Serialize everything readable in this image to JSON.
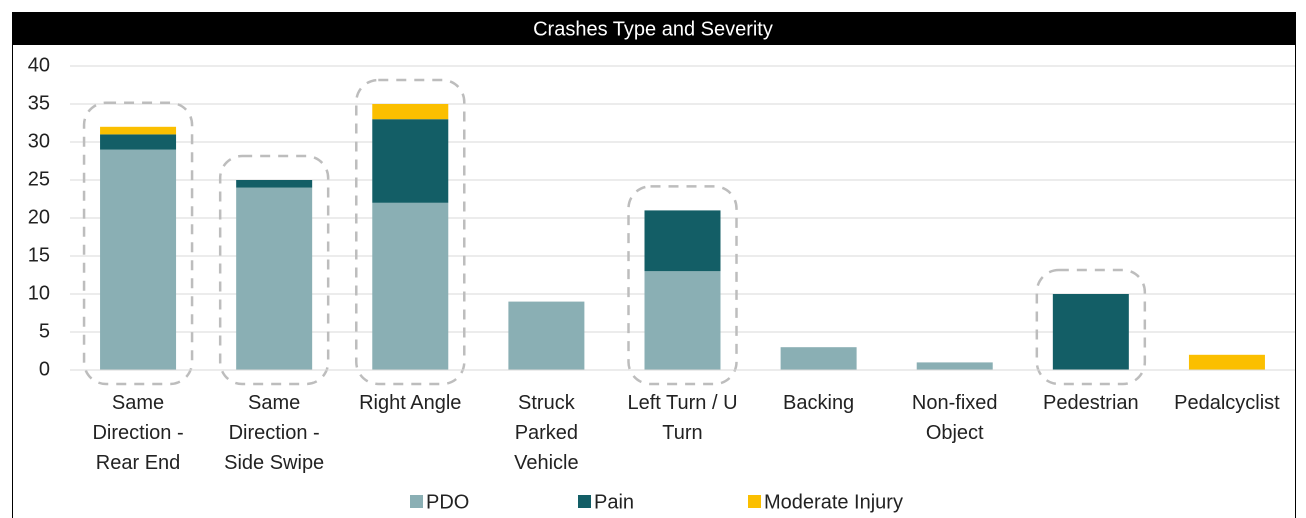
{
  "chart_data": {
    "type": "stacked_bar",
    "title": "Crashes Type and Severity",
    "categories": [
      "Same Direction - Rear End",
      "Same Direction - Side Swipe",
      "Right Angle",
      "Struck Parked Vehicle",
      "Left Turn / U Turn",
      "Backing",
      "Non-fixed Object",
      "Pedestrian",
      "Pedalcyclist"
    ],
    "series": [
      {
        "name": "PDO",
        "color": "#8aafb4",
        "values": [
          29,
          24,
          22,
          9,
          13,
          3,
          1,
          0,
          0
        ]
      },
      {
        "name": "Pain",
        "color": "#135e66",
        "values": [
          2,
          1,
          11,
          0,
          8,
          0,
          0,
          10,
          0
        ]
      },
      {
        "name": "Moderate Injury",
        "color": "#fbbf00",
        "values": [
          1,
          0,
          2,
          0,
          0,
          0,
          0,
          0,
          2
        ]
      }
    ],
    "ylim": [
      0,
      40
    ],
    "yticks": [
      0,
      5,
      10,
      15,
      20,
      25,
      30,
      35,
      40
    ],
    "grid": true,
    "legend": "bottom",
    "highlighted": [
      0,
      1,
      2,
      4,
      7
    ]
  }
}
